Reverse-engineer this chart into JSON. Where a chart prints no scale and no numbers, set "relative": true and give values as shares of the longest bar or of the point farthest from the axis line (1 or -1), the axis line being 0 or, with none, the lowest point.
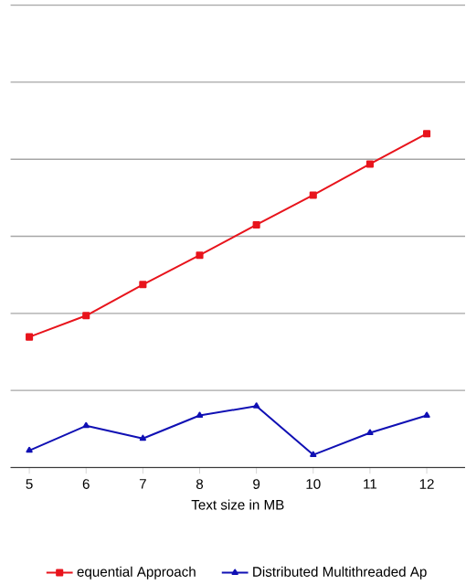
{
  "chart_data": {
    "type": "line",
    "relative": true,
    "xlabel": "Text size in MB",
    "categories": [
      "5",
      "6",
      "7",
      "8",
      "9",
      "10",
      "11",
      "12"
    ],
    "series": [
      {
        "name": "equential Approach",
        "color": "#e8141c",
        "marker": "square",
        "values": [
          0.391,
          0.455,
          0.548,
          0.636,
          0.727,
          0.816,
          0.909,
          1
        ]
      },
      {
        "name": "Distributed Multithreaded Ap",
        "color": "#1010b4",
        "marker": "triangle",
        "values": [
          0.051,
          0.125,
          0.087,
          0.156,
          0.184,
          0.038,
          0.104,
          0.156
        ]
      }
    ],
    "grid": "y",
    "legend": "bottom"
  }
}
